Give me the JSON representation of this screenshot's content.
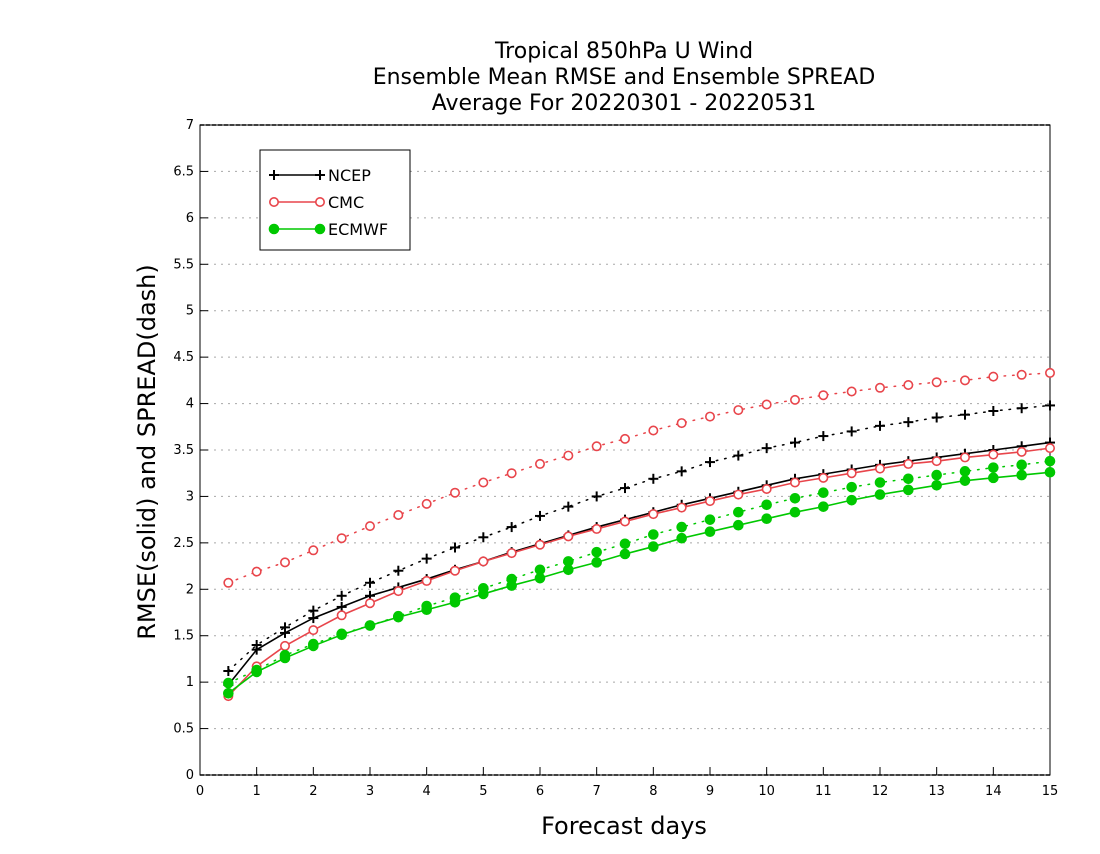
{
  "chart_data": {
    "type": "line",
    "title": [
      "Tropical 850hPa U Wind",
      "Ensemble Mean RMSE and Ensemble SPREAD",
      "Average For 20220301 - 20220531"
    ],
    "xlabel": "Forecast days",
    "ylabel": "RMSE(solid) and SPREAD(dash)",
    "xlim": [
      0,
      15
    ],
    "ylim": [
      0,
      7
    ],
    "xticks": [
      "0",
      "1",
      "2",
      "3",
      "4",
      "5",
      "6",
      "7",
      "8",
      "9",
      "10",
      "11",
      "12",
      "13",
      "14",
      "15"
    ],
    "yticks": [
      "0",
      "0.5",
      "1",
      "1.5",
      "2",
      "2.5",
      "3",
      "3.5",
      "4",
      "4.5",
      "5",
      "5.5",
      "6",
      "6.5",
      "7"
    ],
    "grid": "horizontal dotted",
    "legend_placement": "top-left",
    "x": [
      0.5,
      1,
      1.5,
      2,
      2.5,
      3,
      3.5,
      4,
      4.5,
      5,
      5.5,
      6,
      6.5,
      7,
      7.5,
      8,
      8.5,
      9,
      9.5,
      10,
      10.5,
      11,
      11.5,
      12,
      12.5,
      13,
      13.5,
      14,
      14.5,
      15
    ],
    "series": [
      {
        "name": "NCEP",
        "color": "#000000",
        "marker": "plus",
        "rmse": [
          0.97,
          1.35,
          1.53,
          1.69,
          1.81,
          1.93,
          2.02,
          2.11,
          2.21,
          2.3,
          2.4,
          2.49,
          2.58,
          2.67,
          2.75,
          2.83,
          2.91,
          2.98,
          3.05,
          3.12,
          3.19,
          3.24,
          3.29,
          3.34,
          3.38,
          3.42,
          3.46,
          3.5,
          3.54,
          3.58
        ],
        "spread": [
          1.12,
          1.4,
          1.59,
          1.77,
          1.93,
          2.07,
          2.2,
          2.33,
          2.45,
          2.56,
          2.67,
          2.79,
          2.89,
          3.0,
          3.09,
          3.19,
          3.27,
          3.37,
          3.44,
          3.52,
          3.58,
          3.65,
          3.7,
          3.76,
          3.8,
          3.85,
          3.88,
          3.92,
          3.95,
          3.98
        ]
      },
      {
        "name": "CMC",
        "color": "#e8454b",
        "marker": "open-circle",
        "rmse": [
          0.85,
          1.17,
          1.39,
          1.56,
          1.72,
          1.85,
          1.98,
          2.09,
          2.2,
          2.3,
          2.39,
          2.48,
          2.57,
          2.65,
          2.73,
          2.81,
          2.88,
          2.95,
          3.02,
          3.08,
          3.15,
          3.2,
          3.25,
          3.3,
          3.35,
          3.38,
          3.42,
          3.45,
          3.48,
          3.52
        ],
        "spread": [
          2.07,
          2.19,
          2.29,
          2.42,
          2.55,
          2.68,
          2.8,
          2.92,
          3.04,
          3.15,
          3.25,
          3.35,
          3.44,
          3.54,
          3.62,
          3.71,
          3.79,
          3.86,
          3.93,
          3.99,
          4.04,
          4.09,
          4.13,
          4.17,
          4.2,
          4.23,
          4.25,
          4.29,
          4.31,
          4.33
        ]
      },
      {
        "name": "ECMWF",
        "color": "#00c800",
        "marker": "filled-circle",
        "rmse": [
          0.88,
          1.11,
          1.26,
          1.39,
          1.51,
          1.61,
          1.7,
          1.78,
          1.86,
          1.95,
          2.04,
          2.12,
          2.21,
          2.29,
          2.38,
          2.46,
          2.55,
          2.62,
          2.69,
          2.76,
          2.83,
          2.89,
          2.96,
          3.02,
          3.07,
          3.12,
          3.17,
          3.2,
          3.23,
          3.26
        ],
        "spread": [
          0.99,
          1.13,
          1.29,
          1.41,
          1.52,
          1.61,
          1.71,
          1.82,
          1.91,
          2.01,
          2.11,
          2.21,
          2.3,
          2.4,
          2.49,
          2.59,
          2.67,
          2.75,
          2.83,
          2.91,
          2.98,
          3.04,
          3.1,
          3.15,
          3.19,
          3.23,
          3.27,
          3.31,
          3.34,
          3.38
        ]
      }
    ]
  }
}
